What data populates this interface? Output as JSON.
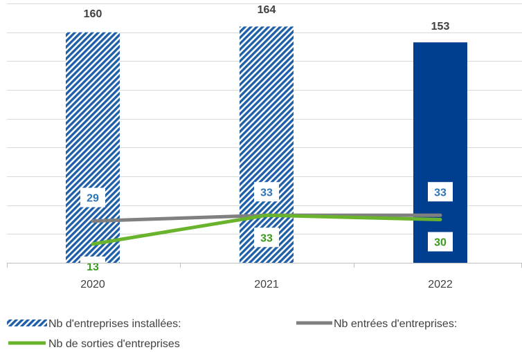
{
  "chart_data": {
    "type": "bar",
    "categories": [
      "2020",
      "2021",
      "2022"
    ],
    "ylim": [
      0,
      180
    ],
    "grid": true,
    "legend_position": "bottom",
    "series": [
      {
        "name": "Nb d'entreprises installées:",
        "type": "bar",
        "values": [
          160,
          164,
          153
        ],
        "color": "#1f5fa8",
        "last_color": "#003f8f",
        "pattern": "diagonal-stripes"
      },
      {
        "name": "Nb entrées d'entreprises:",
        "type": "line",
        "values": [
          29,
          33,
          33
        ],
        "color": "#808080",
        "label_color": "#2e75b6"
      },
      {
        "name": "Nb de sorties d'entreprises",
        "type": "line",
        "values": [
          13,
          33,
          30
        ],
        "color": "#6ab42d",
        "label_color": "#3a9a1a"
      }
    ]
  }
}
